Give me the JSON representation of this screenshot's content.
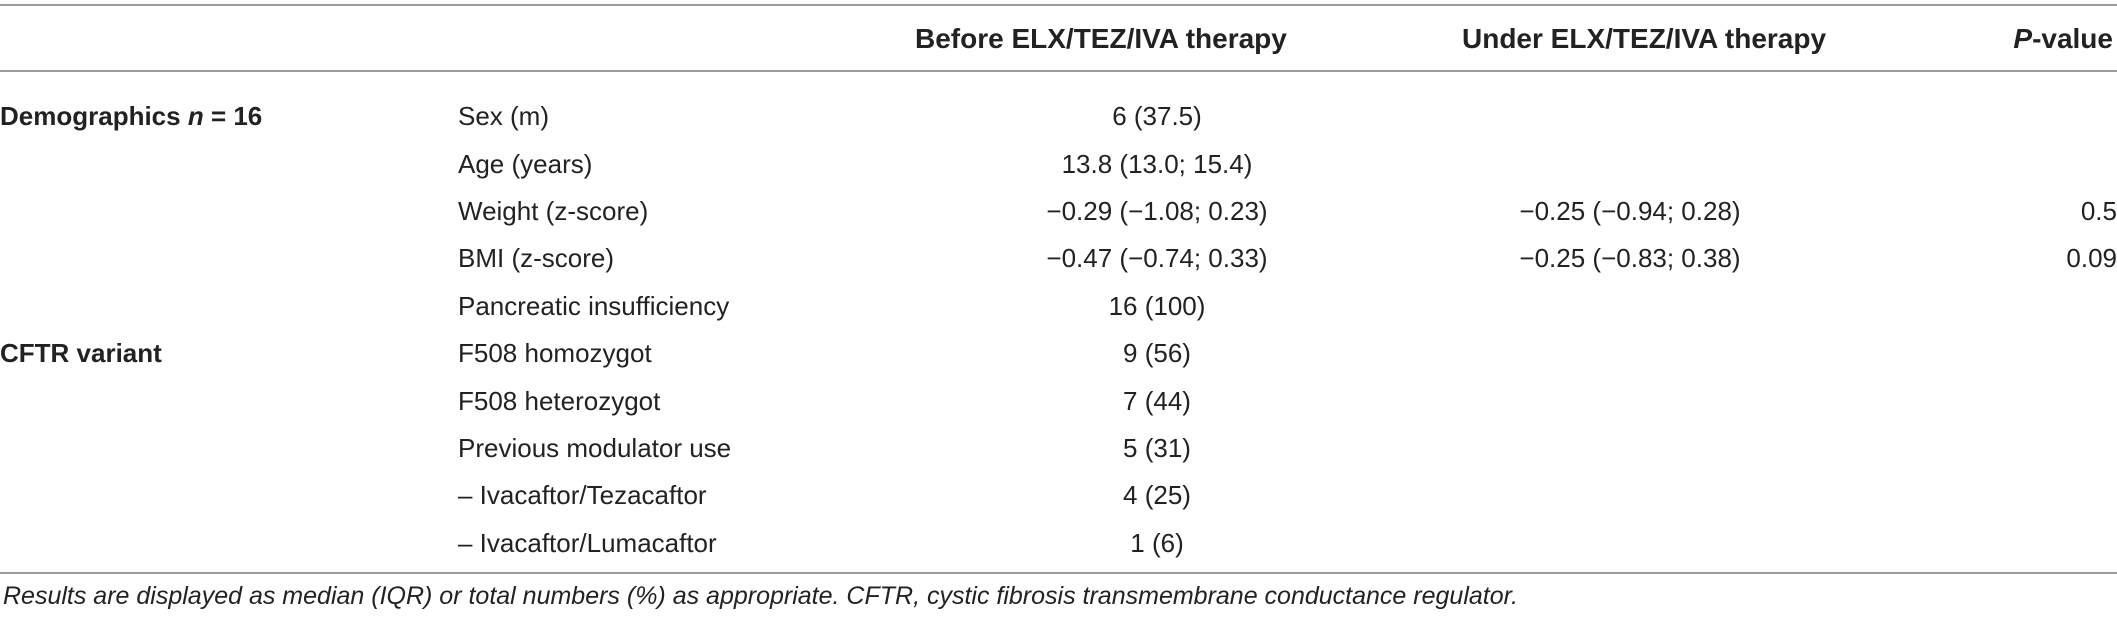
{
  "header": {
    "col_before": "Before ELX/TEZ/IVA therapy",
    "col_under": "Under ELX/TEZ/IVA therapy",
    "col_p_italic": "P",
    "col_p_rest": "-value"
  },
  "rows": [
    {
      "group_bold": "Demographics ",
      "group_italic": "n",
      "group_rest": " = 16",
      "label": "Sex (m)",
      "before": "6 (37.5)",
      "under": "",
      "p": ""
    },
    {
      "group_bold": "",
      "group_italic": "",
      "group_rest": "",
      "label": "Age (years)",
      "before": "13.8 (13.0; 15.4)",
      "under": "",
      "p": ""
    },
    {
      "group_bold": "",
      "group_italic": "",
      "group_rest": "",
      "label": "Weight (z-score)",
      "before": "−0.29 (−1.08; 0.23)",
      "under": "−0.25 (−0.94; 0.28)",
      "p": "0.5"
    },
    {
      "group_bold": "",
      "group_italic": "",
      "group_rest": "",
      "label": "BMI (z-score)",
      "before": "−0.47 (−0.74; 0.33)",
      "under": "−0.25 (−0.83; 0.38)",
      "p": "0.09"
    },
    {
      "group_bold": "",
      "group_italic": "",
      "group_rest": "",
      "label": "Pancreatic insufficiency",
      "before": "16 (100)",
      "under": "",
      "p": ""
    },
    {
      "group_bold": "CFTR variant",
      "group_italic": "",
      "group_rest": "",
      "label": "F508 homozygot",
      "before": "9 (56)",
      "under": "",
      "p": ""
    },
    {
      "group_bold": "",
      "group_italic": "",
      "group_rest": "",
      "label": "F508 heterozygot",
      "before": "7 (44)",
      "under": "",
      "p": ""
    },
    {
      "group_bold": "",
      "group_italic": "",
      "group_rest": "",
      "label": "Previous modulator use",
      "before": "5 (31)",
      "under": "",
      "p": ""
    },
    {
      "group_bold": "",
      "group_italic": "",
      "group_rest": "",
      "label": "– Ivacaftor/Tezacaftor",
      "before": "4 (25)",
      "under": "",
      "p": ""
    },
    {
      "group_bold": "",
      "group_italic": "",
      "group_rest": "",
      "label": "– Ivacaftor/Lumacaftor",
      "before": "1 (6)",
      "under": "",
      "p": ""
    }
  ],
  "footnote": "Results are displayed as median (IQR) or total numbers (%) as appropriate. CFTR, cystic fibrosis transmembrane conductance regulator."
}
